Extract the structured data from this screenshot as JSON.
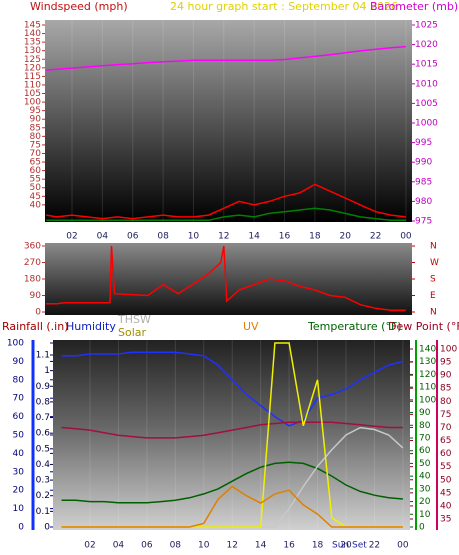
{
  "chart_data": [
    {
      "type": "line",
      "title": "24 hour graph start : September 04 2026",
      "ylabel": "Windspeed (mph)",
      "y2label": "Barometer (mb)",
      "x": [
        0.3,
        1,
        2,
        3,
        4,
        5,
        6,
        7,
        8,
        9,
        10,
        11,
        12,
        13,
        14,
        15,
        16,
        17,
        18,
        19,
        20,
        21,
        22,
        23,
        24
      ],
      "xlim": [
        0.22,
        24.4
      ],
      "xticks": [
        {
          "value": 2,
          "label": "02"
        },
        {
          "value": 4,
          "label": "04"
        },
        {
          "value": 6,
          "label": "06"
        },
        {
          "value": 8,
          "label": "08"
        },
        10,
        12,
        14,
        16,
        18,
        20,
        22,
        {
          "value": 24,
          "label": "00"
        }
      ],
      "ylim": [
        30,
        145
      ],
      "yticks": [
        40,
        45,
        50,
        55,
        60,
        65,
        70,
        75,
        80,
        85,
        90,
        95,
        100,
        105,
        110,
        115,
        120,
        125,
        130,
        135,
        140,
        145
      ],
      "y2lim": [
        975,
        1025
      ],
      "y2ticks": [
        975,
        980,
        985,
        990,
        995,
        1000,
        1005,
        1010,
        1015,
        1020,
        1025
      ],
      "series": [
        {
          "color": "#ff0000",
          "values": [
            34,
            33,
            34,
            33,
            32,
            33,
            32,
            33,
            34,
            33,
            33,
            34,
            38,
            42,
            40,
            42,
            45,
            47,
            52,
            48,
            44,
            40,
            36,
            34,
            33
          ]
        },
        {
          "color": "#008000",
          "values": [
            31,
            31,
            31,
            31,
            31,
            31,
            31,
            31,
            31,
            31,
            31,
            31,
            33,
            34,
            33,
            35,
            36,
            37,
            38,
            37,
            35,
            33,
            32,
            31,
            31
          ]
        },
        {
          "color": "#ff00ff",
          "axis": "y2",
          "values": [
            1013.5,
            1013.7,
            1014,
            1014.3,
            1014.6,
            1014.9,
            1015.1,
            1015.4,
            1015.6,
            1015.8,
            1016,
            1016,
            1016,
            1016,
            1016,
            1016,
            1016.2,
            1016.6,
            1017,
            1017.4,
            1017.9,
            1018.4,
            1018.8,
            1019.2,
            1019.5
          ]
        }
      ]
    },
    {
      "type": "line",
      "x": [
        0.3,
        1,
        1.5,
        4.5,
        4.6,
        4.8,
        7,
        8,
        9,
        10.5,
        11,
        11.8,
        12,
        12.2,
        13,
        14,
        15,
        16,
        17,
        18,
        19,
        20,
        21,
        22,
        23,
        24
      ],
      "xlim": [
        0.22,
        24.4
      ],
      "ylim": [
        0,
        360
      ],
      "yticks": [
        0,
        90,
        180,
        270,
        360
      ],
      "y2lim": [
        0,
        360
      ],
      "y2ticks": [
        {
          "value": 360,
          "label": "N"
        },
        {
          "value": 270,
          "label": "W"
        },
        {
          "value": 180,
          "label": "S"
        },
        {
          "value": 90,
          "label": "E"
        },
        {
          "value": 0,
          "label": "N"
        }
      ],
      "series": [
        {
          "color": "#ff0000",
          "values": [
            45,
            45,
            50,
            50,
            360,
            100,
            90,
            150,
            100,
            180,
            210,
            270,
            360,
            60,
            120,
            150,
            180,
            170,
            140,
            120,
            90,
            80,
            40,
            20,
            10,
            10
          ]
        }
      ]
    },
    {
      "type": "line",
      "ylabel": "Rainfall (.in)",
      "y2label": "Humidity",
      "y3label": "Temperature (°F)",
      "y4label": "Dew Point (°F)",
      "annotation": "Sun Set",
      "x": [
        0,
        1,
        2,
        3,
        4,
        5,
        6,
        7,
        8,
        9,
        10,
        11,
        12,
        13,
        14,
        15,
        16,
        17,
        18,
        19,
        20,
        21,
        22,
        23,
        24
      ],
      "xlim": [
        -0.6,
        24.5
      ],
      "xticks": [
        {
          "value": 2,
          "label": "02"
        },
        {
          "value": 4,
          "label": "04"
        },
        {
          "value": 6,
          "label": "06"
        },
        {
          "value": 8,
          "label": "08"
        },
        10,
        12,
        14,
        16,
        18,
        20,
        22,
        {
          "value": 24,
          "label": "00"
        }
      ],
      "ylim": [
        0,
        1.1
      ],
      "yticks": [
        0,
        0.1,
        0.2,
        0.3,
        0.4,
        0.5,
        0.6,
        0.7,
        0.8,
        0.9,
        1,
        1.1
      ],
      "y2lim": [
        0,
        100
      ],
      "y2ticks": [
        0,
        10,
        20,
        30,
        40,
        50,
        60,
        70,
        80,
        90,
        100
      ],
      "y3lim": [
        0,
        140
      ],
      "y3ticks": [
        0,
        10,
        20,
        30,
        40,
        50,
        60,
        70,
        80,
        90,
        100,
        110,
        120,
        130,
        140
      ],
      "y4lim": [
        35,
        100
      ],
      "y4ticks": [
        35,
        40,
        45,
        50,
        55,
        60,
        65,
        70,
        75,
        80,
        85,
        90,
        95,
        100
      ],
      "series": [
        {
          "color": "#2030ff",
          "axis": "y2",
          "values": [
            93,
            93,
            94,
            94,
            94,
            95,
            95,
            95,
            95,
            94,
            93,
            88,
            80,
            72,
            66,
            60,
            55,
            58,
            70,
            72,
            75,
            80,
            84,
            88,
            90
          ]
        },
        {
          "color": "#a01040",
          "axis": "y4",
          "values": [
            70,
            69.5,
            69,
            68,
            67,
            66.5,
            66,
            66,
            66,
            66.5,
            67,
            68,
            69,
            70,
            71,
            71.5,
            72,
            72,
            72,
            72,
            71.5,
            71,
            70.5,
            70,
            70
          ]
        },
        {
          "color": "#006000",
          "axis": "y3",
          "values": [
            21,
            21,
            20,
            20,
            19,
            19,
            19,
            20,
            21,
            23,
            26,
            30,
            36,
            42,
            47,
            50,
            51,
            50,
            46,
            40,
            33,
            28,
            25,
            23,
            22
          ]
        },
        {
          "name": "THSW",
          "color": "#c8c8c8",
          "axis": "y2",
          "values": [
            0,
            0,
            0,
            0,
            0,
            0,
            0,
            0,
            0,
            0,
            0,
            0,
            0,
            0,
            0,
            0,
            10,
            22,
            33,
            42,
            50,
            54,
            53,
            50,
            43
          ]
        },
        {
          "name": "Solar",
          "color": "#f0f000",
          "axis": "y2",
          "values": [
            0,
            0,
            0,
            0,
            0,
            0,
            0,
            0,
            0,
            0,
            0,
            0,
            0,
            0,
            0,
            100,
            100,
            55,
            80,
            5,
            0,
            0,
            0,
            0,
            0
          ]
        },
        {
          "name": "UV",
          "color": "#e08000",
          "axis": "y2",
          "values": [
            0,
            0,
            0,
            0,
            0,
            0,
            0,
            0,
            0,
            0,
            2,
            15,
            22,
            17,
            13,
            18,
            20,
            12,
            7,
            0,
            0,
            0,
            0,
            0,
            0
          ]
        }
      ]
    }
  ]
}
